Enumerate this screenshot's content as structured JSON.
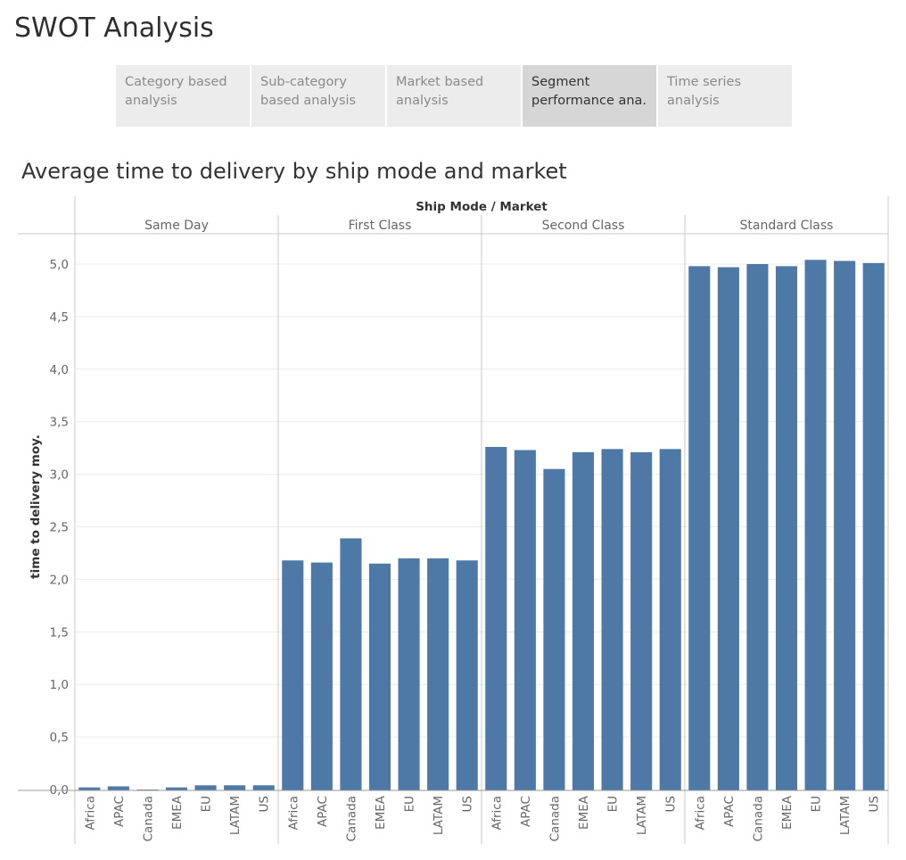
{
  "app": {
    "title": "SWOT Analysis"
  },
  "tabs": [
    {
      "line1": "Category based",
      "line2": "analysis",
      "active": false
    },
    {
      "line1": "Sub-category",
      "line2": "based analysis",
      "active": false
    },
    {
      "line1": "Market based",
      "line2": "analysis",
      "active": false
    },
    {
      "line1": "Segment",
      "line2": "performance ana..",
      "active": true
    },
    {
      "line1": "Time series",
      "line2": "analysis",
      "active": false
    }
  ],
  "colors": {
    "bar": "#4e79a7",
    "grid": "#ececec",
    "rule": "#c8c8c8",
    "axis_text": "#666666"
  },
  "chart_data": {
    "type": "bar",
    "title": "Average time to delivery by ship mode and market",
    "header": "Ship Mode  /  Market",
    "ylabel": "time to delivery moy.",
    "ylim": [
      0,
      5.3
    ],
    "yticks": [
      "0,0",
      "0,5",
      "1,0",
      "1,5",
      "2,0",
      "2,5",
      "3,0",
      "3,5",
      "4,0",
      "4,5",
      "5,0"
    ],
    "grid": true,
    "markets": [
      "Africa",
      "APAC",
      "Canada",
      "EMEA",
      "EU",
      "LATAM",
      "US"
    ],
    "groups": [
      {
        "name": "Same Day",
        "values": [
          0.02,
          0.03,
          0.0,
          0.02,
          0.04,
          0.04,
          0.04
        ]
      },
      {
        "name": "First Class",
        "values": [
          2.18,
          2.16,
          2.39,
          2.15,
          2.2,
          2.2,
          2.18
        ]
      },
      {
        "name": "Second Class",
        "values": [
          3.26,
          3.23,
          3.05,
          3.21,
          3.24,
          3.21,
          3.24
        ]
      },
      {
        "name": "Standard Class",
        "values": [
          4.98,
          4.97,
          5.0,
          4.98,
          5.04,
          5.03,
          5.01
        ]
      }
    ]
  }
}
